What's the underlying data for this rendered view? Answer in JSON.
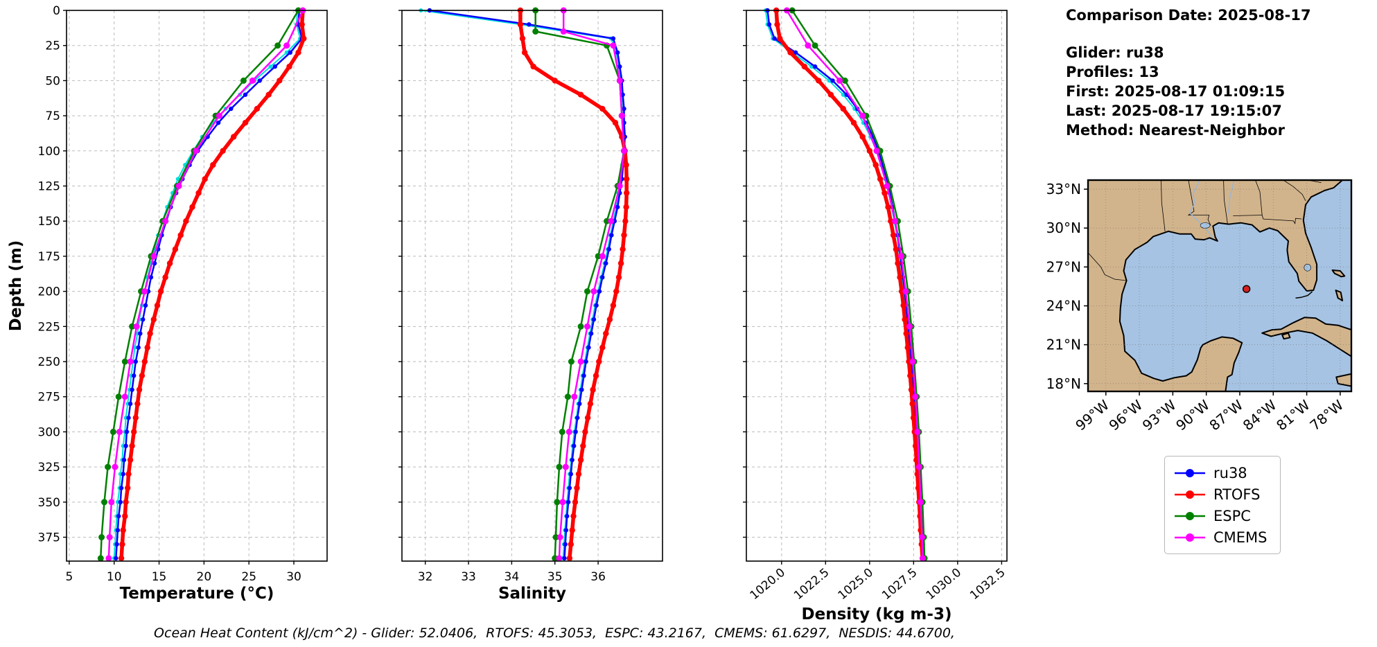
{
  "info_panel": {
    "comparison_date": "Comparison Date: 2025-08-17",
    "glider": "Glider: ru38",
    "profiles": "Profiles: 13",
    "first": "First: 2025-08-17 01:09:15",
    "last": "Last: 2025-08-17 19:15:07",
    "method": "Method: Nearest-Neighbor"
  },
  "caption": "Ocean Heat Content (kJ/cm^2) - Glider: 52.0406,  RTOFS: 45.3053,  ESPC: 43.2167,  CMEMS: 61.6297,  NESDIS: 44.6700,",
  "legend": {
    "entries": [
      {
        "label": "ru38",
        "color": "#0000ff"
      },
      {
        "label": "RTOFS",
        "color": "#ff0000"
      },
      {
        "label": "ESPC",
        "color": "#008000"
      },
      {
        "label": "CMEMS",
        "color": "#ff00ff"
      }
    ]
  },
  "map": {
    "land_color": "#d2b48c",
    "water_color": "#a6c3e3",
    "lat_ticks": [
      {
        "v": 33,
        "label": "33°N"
      },
      {
        "v": 30,
        "label": "30°N"
      },
      {
        "v": 27,
        "label": "27°N"
      },
      {
        "v": 24,
        "label": "24°N"
      },
      {
        "v": 21,
        "label": "21°N"
      },
      {
        "v": 18,
        "label": "18°N"
      }
    ],
    "lon_ticks": [
      {
        "v": -99,
        "label": "99°W"
      },
      {
        "v": -96,
        "label": "96°W"
      },
      {
        "v": -93,
        "label": "93°W"
      },
      {
        "v": -90,
        "label": "90°W"
      },
      {
        "v": -87,
        "label": "87°W"
      },
      {
        "v": -84,
        "label": "84°W"
      },
      {
        "v": -81,
        "label": "81°W"
      },
      {
        "v": -78,
        "label": "78°W"
      }
    ],
    "extent": {
      "lon_min": -100.6,
      "lon_max": -77.0,
      "lat_min": 17.4,
      "lat_max": 33.7
    },
    "marker": {
      "lon": -86.4,
      "lat": 25.3,
      "fill": "#d62020",
      "edge": "#000000"
    }
  },
  "chart_data": [
    {
      "type": "line",
      "xlabel": "Temperature (°C)",
      "ylabel": "Depth (m)",
      "xlim": [
        4.7,
        33.7
      ],
      "ylim": [
        0,
        392
      ],
      "xticks": [
        5,
        10,
        15,
        20,
        25,
        30
      ],
      "yticks": [
        0,
        25,
        50,
        75,
        100,
        125,
        150,
        175,
        200,
        225,
        250,
        275,
        300,
        325,
        350,
        375
      ],
      "show_ylabels": true,
      "grid": true,
      "series": [
        {
          "name": "NESDIS",
          "color": "#00dddd",
          "lw": 2,
          "marker_r": 3,
          "d0": 0,
          "dstep": 10,
          "values": [
            30.4,
            30.3,
            30.7,
            29.2,
            27.4,
            25.6,
            24.0,
            22.4,
            21.0,
            19.8,
            18.8,
            17.9,
            17.1,
            16.5,
            15.9,
            15.4,
            14.9,
            14.5,
            14.1,
            13.7,
            13.4,
            13.1,
            12.8,
            12.6,
            12.3,
            12.1,
            11.9,
            11.7,
            11.5,
            11.3,
            11.2,
            11.0,
            10.9,
            10.7,
            10.6,
            10.4,
            10.3,
            10.2,
            10.1,
            10.0
          ]
        },
        {
          "name": "ru38",
          "color": "#0000ff",
          "lw": 2.5,
          "marker_r": 3.2,
          "d0": 0,
          "dstep": 10,
          "values": [
            30.6,
            30.5,
            30.9,
            29.6,
            27.9,
            26.2,
            24.6,
            23.0,
            21.6,
            20.4,
            19.3,
            18.4,
            17.6,
            16.9,
            16.3,
            15.8,
            15.3,
            14.9,
            14.5,
            14.1,
            13.8,
            13.5,
            13.2,
            12.9,
            12.7,
            12.4,
            12.2,
            12.0,
            11.8,
            11.6,
            11.4,
            11.3,
            11.1,
            11.0,
            10.8,
            10.7,
            10.5,
            10.4,
            10.3,
            10.2
          ]
        },
        {
          "name": "RTOFS",
          "color": "#ff0000",
          "lw": 5.5,
          "marker_r": 4.2,
          "d0": 0,
          "dstep": 10,
          "values": [
            31.0,
            30.9,
            31.1,
            30.5,
            29.5,
            28.4,
            27.2,
            25.9,
            24.6,
            23.3,
            22.1,
            21.0,
            20.1,
            19.4,
            18.7,
            18.0,
            17.4,
            16.8,
            16.2,
            15.7,
            15.2,
            14.8,
            14.4,
            14.0,
            13.7,
            13.4,
            13.1,
            12.8,
            12.6,
            12.4,
            12.2,
            12.0,
            11.8,
            11.6,
            11.5,
            11.3,
            11.2,
            11.0,
            10.9,
            10.8
          ]
        },
        {
          "name": "ESPC",
          "color": "#008000",
          "lw": 2.5,
          "marker_r": 4.5,
          "depths": [
            0,
            25,
            50,
            75,
            100,
            125,
            150,
            175,
            200,
            225,
            250,
            275,
            300,
            325,
            350,
            375,
            390
          ],
          "values": [
            30.5,
            28.2,
            24.4,
            21.3,
            18.9,
            17.0,
            15.4,
            14.1,
            13.0,
            12.0,
            11.2,
            10.5,
            9.9,
            9.3,
            8.9,
            8.6,
            8.5
          ]
        },
        {
          "name": "CMEMS",
          "color": "#ff00ff",
          "lw": 2.5,
          "marker_r": 4.5,
          "depths": [
            0,
            25,
            50,
            75,
            100,
            125,
            150,
            175,
            200,
            225,
            250,
            275,
            300,
            325,
            350,
            375,
            390
          ],
          "values": [
            31.0,
            29.2,
            25.4,
            21.7,
            19.1,
            17.2,
            15.7,
            14.4,
            13.4,
            12.5,
            11.8,
            11.2,
            10.6,
            10.1,
            9.7,
            9.5,
            9.4
          ]
        }
      ]
    },
    {
      "type": "line",
      "xlabel": "Salinity",
      "xlim": [
        31.46,
        37.49
      ],
      "xticks": [
        32,
        33,
        34,
        35,
        36
      ],
      "show_ylabels": false,
      "grid": true,
      "series": [
        {
          "name": "NESDIS",
          "color": "#00dddd",
          "lw": 2,
          "marker_r": 3,
          "d0": 0,
          "dstep": 10,
          "values": [
            31.9,
            34.2,
            36.3,
            36.42,
            36.48,
            36.53,
            36.56,
            36.58,
            36.59,
            36.6,
            36.58,
            36.56,
            36.52,
            36.47,
            36.42,
            36.35,
            36.28,
            36.22,
            36.15,
            36.07,
            36.0,
            35.93,
            35.87,
            35.81,
            35.75,
            35.69,
            35.64,
            35.59,
            35.54,
            35.5,
            35.45,
            35.41,
            35.38,
            35.34,
            35.31,
            35.28,
            35.26,
            35.23,
            35.21,
            35.19
          ]
        },
        {
          "name": "ru38",
          "color": "#0000ff",
          "lw": 2.5,
          "marker_r": 3.2,
          "d0": 0,
          "dstep": 10,
          "values": [
            32.1,
            34.4,
            36.35,
            36.45,
            36.5,
            36.55,
            36.57,
            36.6,
            36.6,
            36.62,
            36.6,
            36.58,
            36.55,
            36.5,
            36.45,
            36.38,
            36.31,
            36.25,
            36.18,
            36.1,
            36.03,
            35.96,
            35.9,
            35.84,
            35.78,
            35.72,
            35.67,
            35.62,
            35.57,
            35.52,
            35.48,
            35.44,
            35.4,
            35.37,
            35.34,
            35.31,
            35.28,
            35.26,
            35.24,
            35.22
          ]
        },
        {
          "name": "RTOFS",
          "color": "#ff0000",
          "lw": 5.5,
          "marker_r": 4.2,
          "d0": 0,
          "dstep": 10,
          "values": [
            34.2,
            34.2,
            34.25,
            34.3,
            34.5,
            35.0,
            35.6,
            36.1,
            36.4,
            36.55,
            36.62,
            36.65,
            36.66,
            36.66,
            36.65,
            36.63,
            36.6,
            36.57,
            36.53,
            36.48,
            36.42,
            36.35,
            36.27,
            36.18,
            36.1,
            36.02,
            35.95,
            35.88,
            35.82,
            35.76,
            35.7,
            35.65,
            35.6,
            35.55,
            35.51,
            35.47,
            35.43,
            35.4,
            35.37,
            35.34
          ]
        },
        {
          "name": "ESPC",
          "color": "#008000",
          "lw": 2.5,
          "marker_r": 4.5,
          "depths": [
            0,
            15,
            25,
            50,
            75,
            100,
            125,
            150,
            175,
            200,
            225,
            250,
            275,
            300,
            325,
            350,
            375,
            390
          ],
          "values": [
            34.55,
            34.55,
            36.2,
            36.5,
            36.55,
            36.6,
            36.45,
            36.2,
            36.0,
            35.75,
            35.6,
            35.38,
            35.3,
            35.17,
            35.1,
            35.05,
            35.02,
            35.0
          ]
        },
        {
          "name": "CMEMS",
          "color": "#ff00ff",
          "lw": 2.5,
          "marker_r": 4.5,
          "depths": [
            0,
            15,
            25,
            50,
            75,
            100,
            125,
            150,
            175,
            200,
            225,
            250,
            275,
            300,
            325,
            350,
            375,
            390
          ],
          "values": [
            35.2,
            35.2,
            36.35,
            36.5,
            36.55,
            36.6,
            36.5,
            36.3,
            36.1,
            35.9,
            35.75,
            35.6,
            35.45,
            35.33,
            35.25,
            35.18,
            35.12,
            35.1
          ]
        }
      ]
    },
    {
      "type": "line",
      "xlabel": "Density (kg m-3)",
      "xlim": [
        1018.0,
        1032.8
      ],
      "xticks": [
        1020.0,
        1022.5,
        1025.0,
        1027.5,
        1030.0,
        1032.5
      ],
      "xtick_labels": [
        "1020.0",
        "1022.5",
        "1025.0",
        "1027.5",
        "1030.0",
        "1032.5"
      ],
      "xtick_rotation": -40,
      "show_ylabels": false,
      "grid": true,
      "series": [
        {
          "name": "NESDIS",
          "color": "#00dddd",
          "lw": 2,
          "marker_r": 3,
          "d0": 0,
          "dstep": 10,
          "values": [
            1019.1,
            1019.2,
            1019.5,
            1020.6,
            1021.7,
            1022.7,
            1023.5,
            1024.15,
            1024.65,
            1025.05,
            1025.4,
            1025.65,
            1025.88,
            1026.08,
            1026.25,
            1026.4,
            1026.55,
            1026.66,
            1026.76,
            1026.86,
            1026.96,
            1027.05,
            1027.13,
            1027.2,
            1027.27,
            1027.34,
            1027.4,
            1027.46,
            1027.52,
            1027.57,
            1027.62,
            1027.67,
            1027.72,
            1027.77,
            1027.82,
            1027.87,
            1027.91,
            1027.95,
            1027.99,
            1028.03
          ]
        },
        {
          "name": "ru38",
          "color": "#0000ff",
          "lw": 2.5,
          "marker_r": 3.2,
          "d0": 0,
          "dstep": 10,
          "values": [
            1019.2,
            1019.3,
            1019.6,
            1020.8,
            1021.9,
            1022.9,
            1023.7,
            1024.3,
            1024.8,
            1025.2,
            1025.5,
            1025.75,
            1025.95,
            1026.15,
            1026.3,
            1026.45,
            1026.6,
            1026.7,
            1026.8,
            1026.9,
            1027.0,
            1027.08,
            1027.16,
            1027.24,
            1027.3,
            1027.37,
            1027.43,
            1027.49,
            1027.55,
            1027.6,
            1027.65,
            1027.7,
            1027.75,
            1027.8,
            1027.85,
            1027.9,
            1027.94,
            1027.98,
            1028.02,
            1028.06
          ]
        },
        {
          "name": "RTOFS",
          "color": "#ff0000",
          "lw": 5.5,
          "marker_r": 4.2,
          "d0": 0,
          "dstep": 10,
          "values": [
            1019.7,
            1019.75,
            1019.9,
            1020.5,
            1021.3,
            1022.1,
            1022.8,
            1023.5,
            1024.1,
            1024.6,
            1025.0,
            1025.35,
            1025.6,
            1025.85,
            1026.05,
            1026.2,
            1026.35,
            1026.5,
            1026.6,
            1026.72,
            1026.82,
            1026.92,
            1027.0,
            1027.08,
            1027.16,
            1027.23,
            1027.3,
            1027.37,
            1027.43,
            1027.49,
            1027.55,
            1027.61,
            1027.66,
            1027.71,
            1027.76,
            1027.81,
            1027.86,
            1027.9,
            1027.95,
            1028.0
          ]
        },
        {
          "name": "ESPC",
          "color": "#008000",
          "lw": 2.5,
          "marker_r": 4.5,
          "depths": [
            0,
            25,
            50,
            75,
            100,
            125,
            150,
            175,
            200,
            225,
            250,
            275,
            300,
            325,
            350,
            375,
            390
          ],
          "values": [
            1020.6,
            1021.9,
            1023.6,
            1024.8,
            1025.6,
            1026.15,
            1026.6,
            1026.92,
            1027.18,
            1027.37,
            1027.53,
            1027.67,
            1027.8,
            1027.9,
            1028.0,
            1028.08,
            1028.12
          ]
        },
        {
          "name": "CMEMS",
          "color": "#ff00ff",
          "lw": 2.5,
          "marker_r": 4.5,
          "depths": [
            0,
            25,
            50,
            75,
            100,
            125,
            150,
            175,
            200,
            225,
            250,
            275,
            300,
            325,
            350,
            375,
            390
          ],
          "values": [
            1020.3,
            1021.5,
            1023.3,
            1024.6,
            1025.4,
            1026.0,
            1026.45,
            1026.8,
            1027.05,
            1027.27,
            1027.45,
            1027.6,
            1027.72,
            1027.82,
            1027.9,
            1027.98,
            1028.02
          ]
        }
      ]
    }
  ]
}
